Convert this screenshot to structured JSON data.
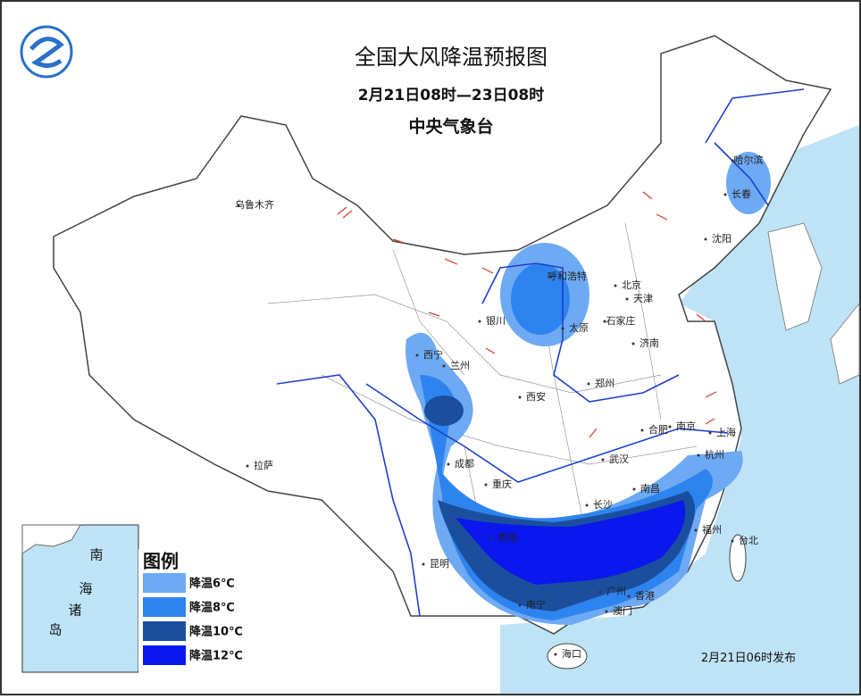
{
  "header": {
    "title": "全国大风降温预报图",
    "period": "2月21日08时—23日08时",
    "issuer": "中央气象台"
  },
  "cities": [
    "乌鲁木齐",
    "哈尔滨",
    "长春",
    "沈阳",
    "呼和浩特",
    "北京",
    "天津",
    "银川",
    "太原",
    "石家庄",
    "西宁",
    "兰州",
    "济南",
    "郑州",
    "西安",
    "合肥",
    "南京",
    "上海",
    "拉萨",
    "成都",
    "武汉",
    "杭州",
    "重庆",
    "长沙",
    "南昌",
    "贵阳",
    "福州",
    "台北",
    "昆明",
    "南宁",
    "广州",
    "香港",
    "澳门",
    "海口"
  ],
  "inset": [
    "南",
    "海",
    "诸",
    "岛"
  ],
  "legend": {
    "title": "图例",
    "items": [
      "降温6℃",
      "降温8℃",
      "降温10℃",
      "降温12℃"
    ]
  },
  "footer": "2月21日06时发布"
}
